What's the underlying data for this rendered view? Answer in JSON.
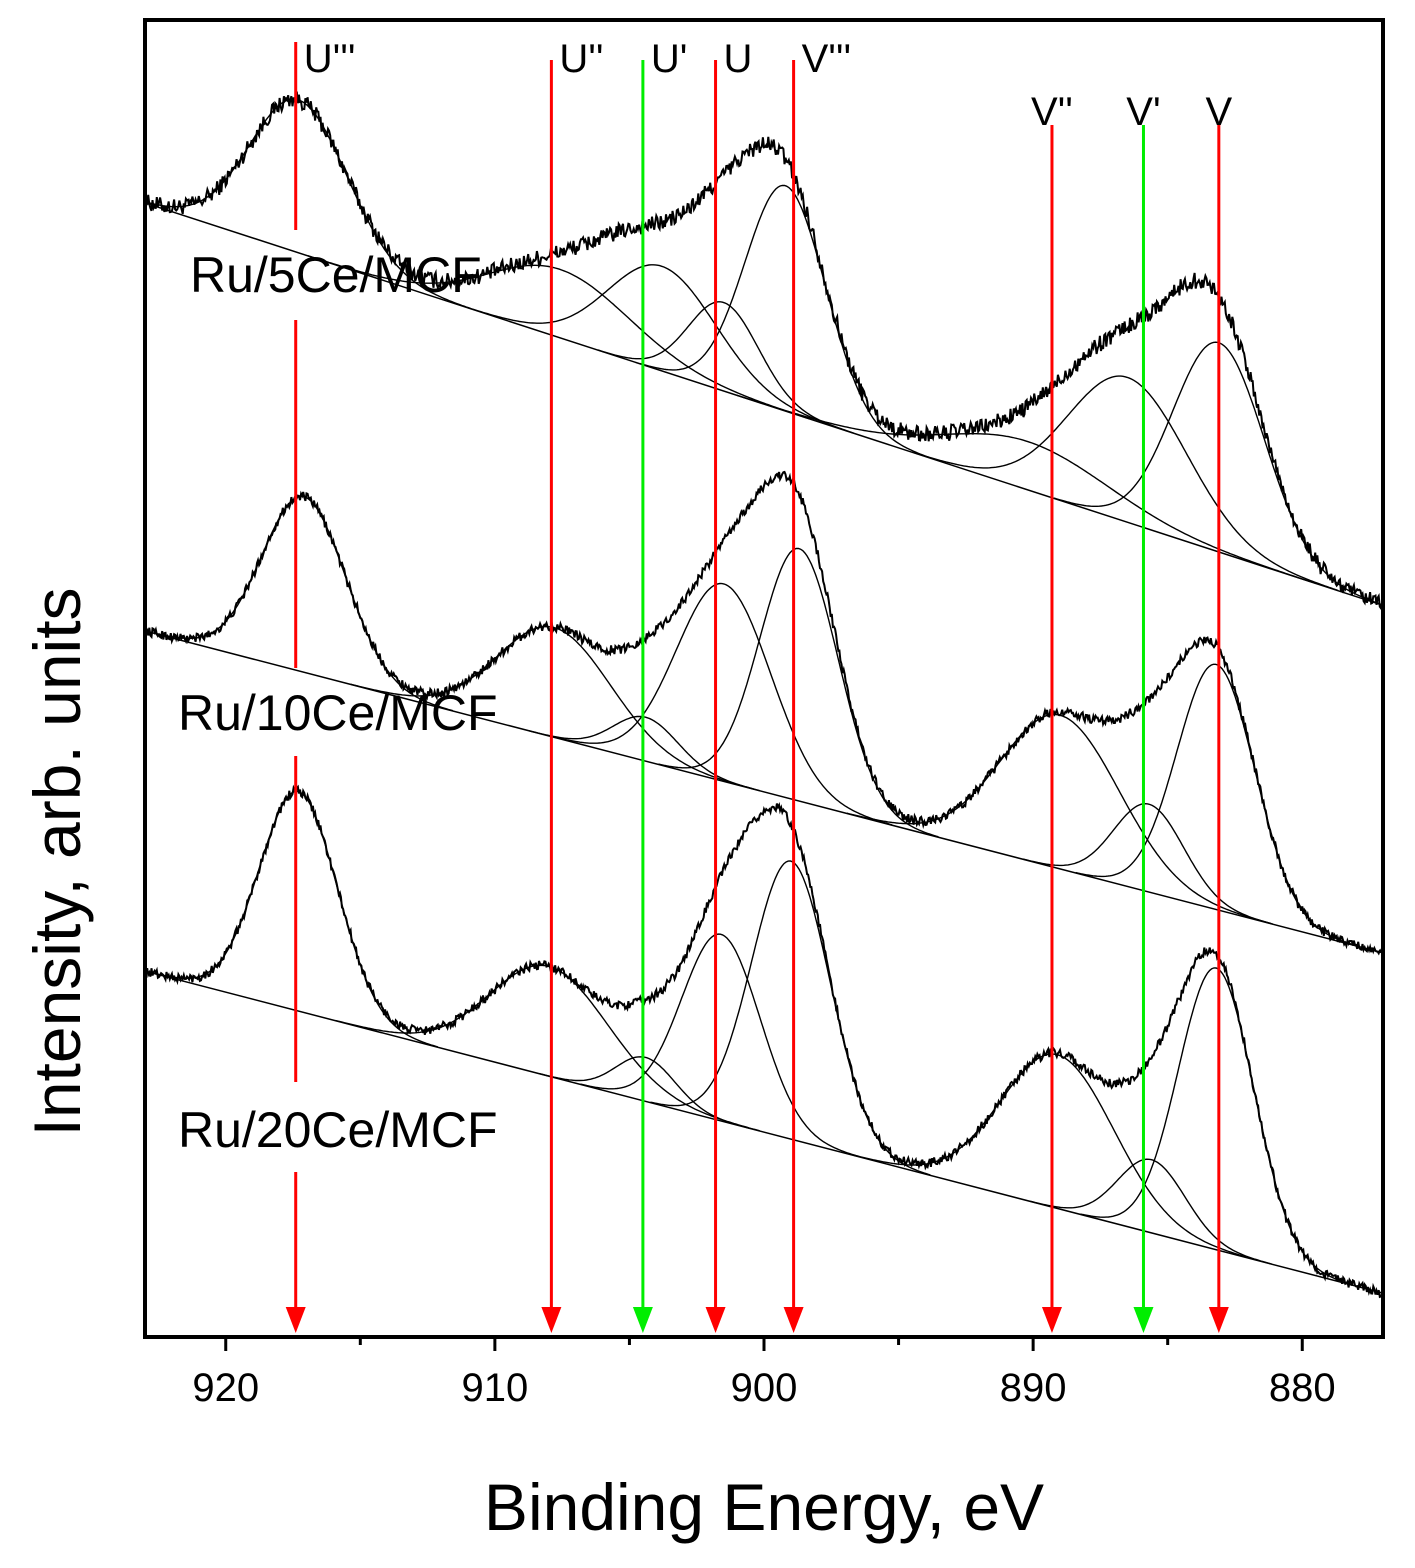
{
  "chart_data": {
    "type": "line",
    "title": "",
    "xlabel": "Binding Energy, eV",
    "ylabel": "Intensity, arb. units",
    "xlim": [
      923,
      877
    ],
    "x_reversed": true,
    "xticks": [
      920,
      910,
      900,
      890,
      880
    ],
    "grid": false,
    "colors": {
      "data": "#000000",
      "red_marker": "#ff0000",
      "green_marker": "#00ee00"
    },
    "series": [
      {
        "name": "Ru/5Ce/MCF",
        "offset": 2.0,
        "amplitude": 1.1,
        "baseline": [
          1.0,
          0.0
        ],
        "peaks": [
          {
            "label": "U'''",
            "center": 917.3,
            "height": 0.38,
            "width": 1.8
          },
          {
            "label": "U''",
            "center": 907.6,
            "height": 0.17,
            "width": 2.6
          },
          {
            "label": "U'",
            "center": 903.8,
            "height": 0.26,
            "width": 2.0
          },
          {
            "label": "U",
            "center": 901.5,
            "height": 0.22,
            "width": 1.3
          },
          {
            "label": "V'''",
            "center": 899.2,
            "height": 0.56,
            "width": 1.5
          },
          {
            "label": "V''",
            "center": 890.2,
            "height": 0.12,
            "width": 3.0
          },
          {
            "label": "V'",
            "center": 886.5,
            "height": 0.36,
            "width": 2.2
          },
          {
            "label": "V",
            "center": 883.1,
            "height": 0.52,
            "width": 1.7
          }
        ]
      },
      {
        "name": "Ru/10Ce/MCF",
        "offset": 1.05,
        "amplitude": 1.0,
        "baseline": [
          0.88,
          0.0
        ],
        "peaks": [
          {
            "label": "U'''",
            "center": 917.1,
            "height": 0.48,
            "width": 1.55
          },
          {
            "label": "U''",
            "center": 907.8,
            "height": 0.3,
            "width": 2.1
          },
          {
            "label": "U'",
            "center": 904.4,
            "height": 0.12,
            "width": 1.2
          },
          {
            "label": "U",
            "center": 901.5,
            "height": 0.54,
            "width": 1.75
          },
          {
            "label": "V'''",
            "center": 898.7,
            "height": 0.69,
            "width": 1.45
          },
          {
            "label": "V''",
            "center": 889.0,
            "height": 0.42,
            "width": 2.2
          },
          {
            "label": "V'",
            "center": 885.7,
            "height": 0.24,
            "width": 1.3
          },
          {
            "label": "V",
            "center": 883.2,
            "height": 0.67,
            "width": 1.45
          }
        ]
      },
      {
        "name": "Ru/20Ce/MCF",
        "offset": 0.12,
        "amplitude": 1.0,
        "baseline": [
          0.88,
          0.0
        ],
        "peaks": [
          {
            "label": "U'''",
            "center": 917.3,
            "height": 0.6,
            "width": 1.45
          },
          {
            "label": "U''",
            "center": 908.0,
            "height": 0.3,
            "width": 2.2
          },
          {
            "label": "U'",
            "center": 904.4,
            "height": 0.12,
            "width": 1.1
          },
          {
            "label": "U",
            "center": 901.6,
            "height": 0.51,
            "width": 1.45
          },
          {
            "label": "V'''",
            "center": 899.0,
            "height": 0.76,
            "width": 1.45
          },
          {
            "label": "V''",
            "center": 889.1,
            "height": 0.42,
            "width": 2.1
          },
          {
            "label": "V'",
            "center": 885.6,
            "height": 0.2,
            "width": 1.25
          },
          {
            "label": "V",
            "center": 883.2,
            "height": 0.77,
            "width": 1.4
          }
        ]
      }
    ],
    "markers": [
      {
        "label": "U'''",
        "energy": 917.4,
        "color": "red"
      },
      {
        "label": "U''",
        "energy": 907.9,
        "color": "red"
      },
      {
        "label": "U'",
        "energy": 904.5,
        "color": "green"
      },
      {
        "label": "U",
        "energy": 901.8,
        "color": "red"
      },
      {
        "label": "V'''",
        "energy": 898.9,
        "color": "red"
      },
      {
        "label": "V''",
        "energy": 889.3,
        "color": "red"
      },
      {
        "label": "V'",
        "energy": 885.9,
        "color": "green"
      },
      {
        "label": "V",
        "energy": 883.1,
        "color": "red"
      }
    ],
    "sample_labels": [
      "Ru/5Ce/MCF",
      "Ru/10Ce/MCF",
      "Ru/20Ce/MCF"
    ]
  }
}
